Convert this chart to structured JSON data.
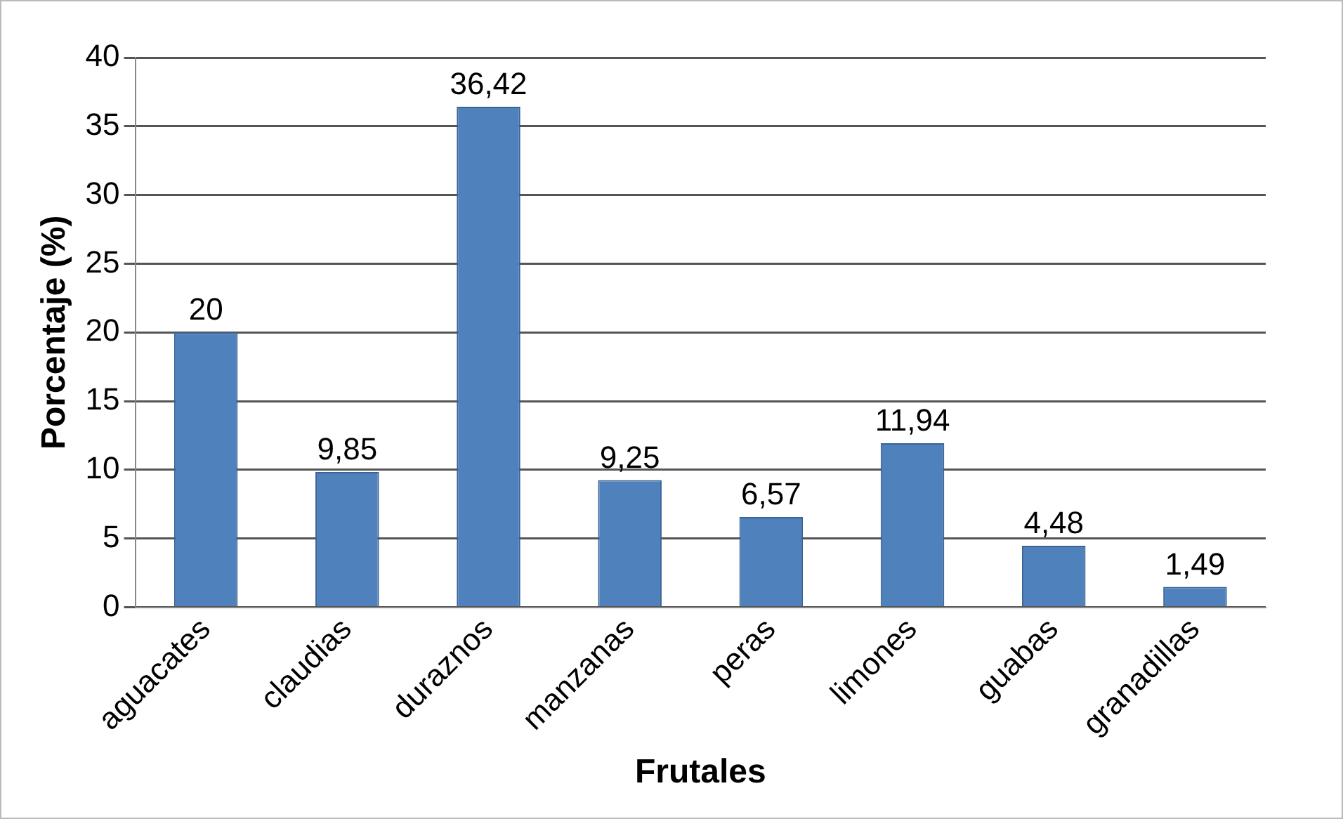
{
  "chart_data": {
    "type": "bar",
    "xlabel": "Frutales",
    "ylabel": "Porcentaje (%)",
    "categories": [
      "aguacates",
      "claudias",
      "duraznos",
      "manzanas",
      "peras",
      "limones",
      "guabas",
      "granadillas"
    ],
    "values": [
      20,
      9.85,
      36.42,
      9.25,
      6.57,
      11.94,
      4.48,
      1.49
    ],
    "value_labels": [
      "20",
      "9,85",
      "36,42",
      "9,25",
      "6,57",
      "11,94",
      "4,48",
      "1,49"
    ],
    "color": "#4f81bd",
    "ylim": [
      0,
      40
    ],
    "yticks": [
      0,
      5,
      10,
      15,
      20,
      25,
      30,
      35,
      40
    ],
    "grid": "y",
    "legend": false
  }
}
